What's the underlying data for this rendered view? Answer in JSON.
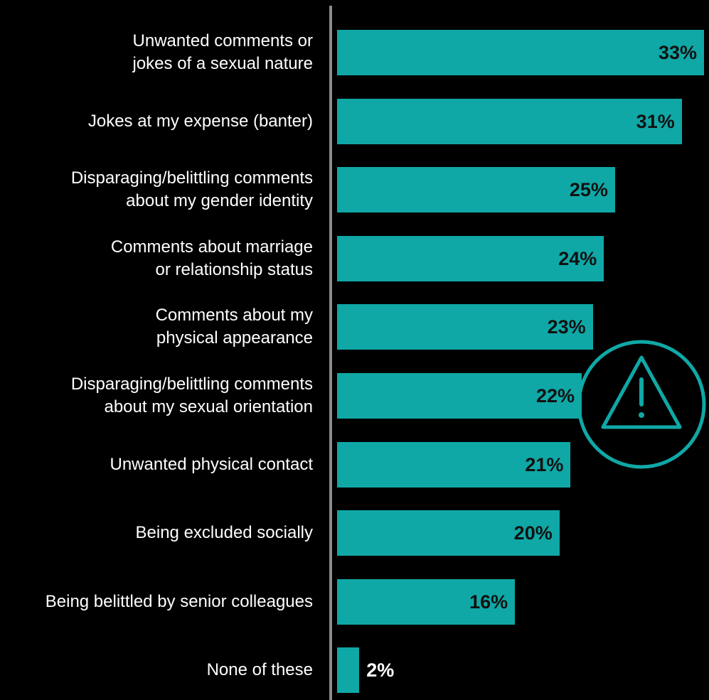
{
  "chart_data": {
    "type": "bar",
    "orientation": "horizontal",
    "categories": [
      "Unwanted comments or\njokes of a sexual nature",
      "Jokes at my expense (banter)",
      "Disparaging/belittling comments\nabout my gender identity",
      "Comments about marriage\nor relationship status",
      "Comments about my\nphysical appearance",
      "Disparaging/belittling comments\nabout my sexual orientation",
      "Unwanted physical contact",
      "Being excluded socially",
      "Being belittled by senior colleagues",
      "None of these"
    ],
    "values": [
      33,
      31,
      25,
      24,
      23,
      22,
      21,
      20,
      16,
      2
    ],
    "value_labels": [
      "33%",
      "31%",
      "25%",
      "24%",
      "23%",
      "22%",
      "21%",
      "20%",
      "16%",
      "2%"
    ],
    "unit": "%",
    "xlim": [
      0,
      33
    ],
    "grid": false,
    "legend": "none",
    "bar_color": "#0fa8a6",
    "small_value_label_color": "#ffffff"
  },
  "decoration": {
    "icon": "warning-triangle-icon",
    "color": "#0fa8a6"
  }
}
